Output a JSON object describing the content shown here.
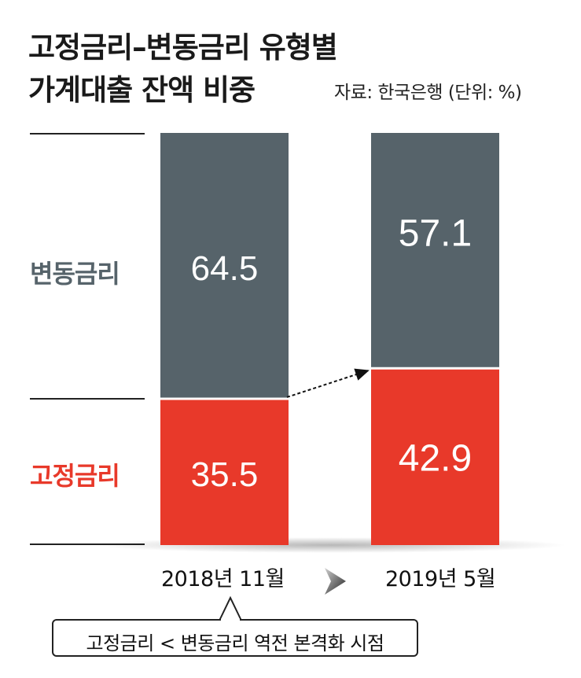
{
  "title_line1": "고정금리–변동금리 유형별",
  "title_line2": "가계대출 잔액 비중",
  "source": "자료: 한국은행 (단위: %)",
  "callout": "고정금리 < 변동금리 역전 본격화 시점",
  "colors": {
    "variable": "#56636a",
    "fixed": "#e8392a",
    "text": "#1a1a1a"
  },
  "chart_data": {
    "type": "bar",
    "stacked": true,
    "categories": [
      "2018년 11월",
      "2019년 5월"
    ],
    "series": [
      {
        "name": "고정금리",
        "values": [
          35.5,
          42.9
        ],
        "color": "#e8392a"
      },
      {
        "name": "변동금리",
        "values": [
          64.5,
          57.1
        ],
        "color": "#56636a"
      }
    ],
    "ylim": [
      0,
      100
    ],
    "legend": "left",
    "grid": false,
    "annotation": "dashed arrow from top of 2018년 11월 고정금리 to top of 2019년 5월 고정금리"
  }
}
